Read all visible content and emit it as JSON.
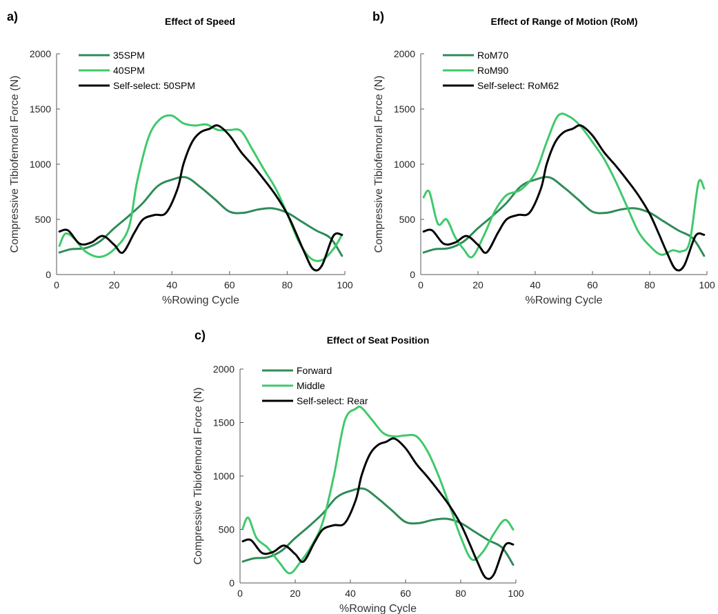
{
  "colors": {
    "dark_green": "#2e8b57",
    "light_green": "#3ec96b",
    "black": "#000000"
  },
  "chart_data": [
    {
      "type": "line",
      "panel_label": "a)",
      "title": "Effect of Speed",
      "xlabel": "%Rowing Cycle",
      "ylabel": "Compressive Tibiofemoral Force (N)",
      "xlim": [
        0,
        100
      ],
      "ylim": [
        0,
        2000
      ],
      "xticks": [
        0,
        20,
        40,
        60,
        80,
        100
      ],
      "yticks": [
        0,
        500,
        1000,
        1500,
        2000
      ],
      "legend_position": "top-left",
      "grid": false,
      "series": [
        {
          "name": "35SPM",
          "color": "#2e8b57",
          "x": [
            1,
            5,
            10,
            15,
            20,
            25,
            30,
            35,
            40,
            45,
            50,
            55,
            60,
            65,
            70,
            75,
            80,
            85,
            90,
            95,
            99
          ],
          "y": [
            200,
            230,
            240,
            300,
            420,
            530,
            650,
            800,
            860,
            880,
            790,
            680,
            570,
            560,
            590,
            600,
            560,
            480,
            400,
            330,
            170
          ]
        },
        {
          "name": "40SPM",
          "color": "#3ec96b",
          "x": [
            1,
            3,
            6,
            10,
            15,
            20,
            25,
            28,
            32,
            36,
            40,
            44,
            48,
            52,
            56,
            60,
            64,
            68,
            72,
            76,
            80,
            84,
            88,
            92,
            96,
            99
          ],
          "y": [
            260,
            370,
            330,
            210,
            160,
            230,
            420,
            850,
            1250,
            1410,
            1440,
            1370,
            1350,
            1360,
            1310,
            1310,
            1300,
            1130,
            950,
            780,
            550,
            300,
            150,
            130,
            230,
            360
          ]
        },
        {
          "name": "Self-select: 50SPM",
          "color": "#000000",
          "x": [
            1,
            4,
            8,
            12,
            16,
            20,
            23,
            27,
            30,
            34,
            38,
            42,
            44,
            47,
            50,
            53,
            56,
            60,
            64,
            68,
            72,
            76,
            80,
            83,
            86,
            89,
            92,
            96,
            99
          ],
          "y": [
            390,
            400,
            280,
            290,
            350,
            270,
            200,
            380,
            500,
            540,
            560,
            780,
            1000,
            1200,
            1290,
            1320,
            1350,
            1260,
            1110,
            990,
            860,
            720,
            550,
            380,
            200,
            50,
            80,
            350,
            360
          ]
        }
      ]
    },
    {
      "type": "line",
      "panel_label": "b)",
      "title": "Effect of Range of Motion (RoM)",
      "xlabel": "%Rowing Cycle",
      "ylabel": "Compressive Tibiofemoral Force (N)",
      "xlim": [
        0,
        100
      ],
      "ylim": [
        0,
        2000
      ],
      "xticks": [
        0,
        20,
        40,
        60,
        80,
        100
      ],
      "yticks": [
        0,
        500,
        1000,
        1500,
        2000
      ],
      "legend_position": "top-left",
      "grid": false,
      "series": [
        {
          "name": "RoM70",
          "color": "#2e8b57",
          "x": [
            1,
            5,
            10,
            15,
            20,
            25,
            30,
            35,
            40,
            45,
            50,
            55,
            60,
            65,
            70,
            75,
            80,
            85,
            90,
            95,
            99
          ],
          "y": [
            200,
            230,
            240,
            300,
            420,
            530,
            650,
            800,
            860,
            880,
            790,
            680,
            570,
            560,
            590,
            600,
            560,
            480,
            400,
            330,
            170
          ]
        },
        {
          "name": "RoM90",
          "color": "#3ec96b",
          "x": [
            1,
            3,
            6,
            9,
            12,
            15,
            18,
            22,
            26,
            30,
            35,
            40,
            44,
            48,
            52,
            56,
            60,
            64,
            68,
            72,
            76,
            80,
            84,
            88,
            91,
            94,
            97,
            99
          ],
          "y": [
            700,
            750,
            460,
            500,
            340,
            230,
            160,
            350,
            580,
            720,
            770,
            920,
            1200,
            1440,
            1430,
            1340,
            1200,
            1050,
            850,
            620,
            390,
            260,
            180,
            220,
            210,
            300,
            830,
            780
          ]
        },
        {
          "name": "Self-select: RoM62",
          "color": "#000000",
          "x": [
            1,
            4,
            8,
            12,
            16,
            20,
            23,
            27,
            30,
            34,
            38,
            42,
            44,
            47,
            50,
            53,
            56,
            60,
            64,
            68,
            72,
            76,
            80,
            83,
            86,
            89,
            92,
            96,
            99
          ],
          "y": [
            390,
            400,
            280,
            290,
            350,
            270,
            200,
            380,
            500,
            540,
            560,
            780,
            1000,
            1200,
            1290,
            1320,
            1350,
            1260,
            1110,
            990,
            860,
            720,
            550,
            380,
            200,
            50,
            80,
            350,
            360
          ]
        }
      ]
    },
    {
      "type": "line",
      "panel_label": "c)",
      "title": "Effect of Seat Position",
      "xlabel": "%Rowing Cycle",
      "ylabel": "Compressive Tibiofemoral Force (N)",
      "xlim": [
        0,
        100
      ],
      "ylim": [
        0,
        2000
      ],
      "xticks": [
        0,
        20,
        40,
        60,
        80,
        100
      ],
      "yticks": [
        0,
        500,
        1000,
        1500,
        2000
      ],
      "legend_position": "top-left",
      "grid": false,
      "series": [
        {
          "name": "Forward",
          "color": "#2e8b57",
          "x": [
            1,
            5,
            10,
            15,
            20,
            25,
            30,
            35,
            40,
            45,
            50,
            55,
            60,
            65,
            70,
            75,
            80,
            85,
            90,
            95,
            99
          ],
          "y": [
            200,
            230,
            240,
            300,
            420,
            530,
            650,
            800,
            860,
            880,
            790,
            680,
            570,
            560,
            590,
            600,
            560,
            480,
            400,
            330,
            170
          ]
        },
        {
          "name": "Middle",
          "color": "#3ec96b",
          "x": [
            1,
            3,
            6,
            10,
            14,
            18,
            22,
            26,
            30,
            34,
            38,
            42,
            44,
            48,
            52,
            56,
            60,
            64,
            68,
            72,
            76,
            80,
            84,
            88,
            92,
            96,
            99
          ],
          "y": [
            510,
            610,
            420,
            330,
            200,
            90,
            200,
            350,
            570,
            1000,
            1520,
            1630,
            1640,
            1520,
            1400,
            1370,
            1380,
            1370,
            1230,
            1000,
            720,
            430,
            220,
            290,
            460,
            590,
            500
          ]
        },
        {
          "name": "Self-select: Rear",
          "color": "#000000",
          "x": [
            1,
            4,
            8,
            12,
            16,
            20,
            23,
            27,
            30,
            34,
            38,
            42,
            44,
            47,
            50,
            53,
            56,
            60,
            64,
            68,
            72,
            76,
            80,
            83,
            86,
            89,
            92,
            96,
            99
          ],
          "y": [
            390,
            400,
            280,
            290,
            350,
            270,
            200,
            380,
            500,
            540,
            560,
            780,
            1000,
            1200,
            1290,
            1320,
            1350,
            1260,
            1110,
            990,
            860,
            720,
            550,
            380,
            200,
            50,
            80,
            350,
            360
          ]
        }
      ]
    }
  ]
}
